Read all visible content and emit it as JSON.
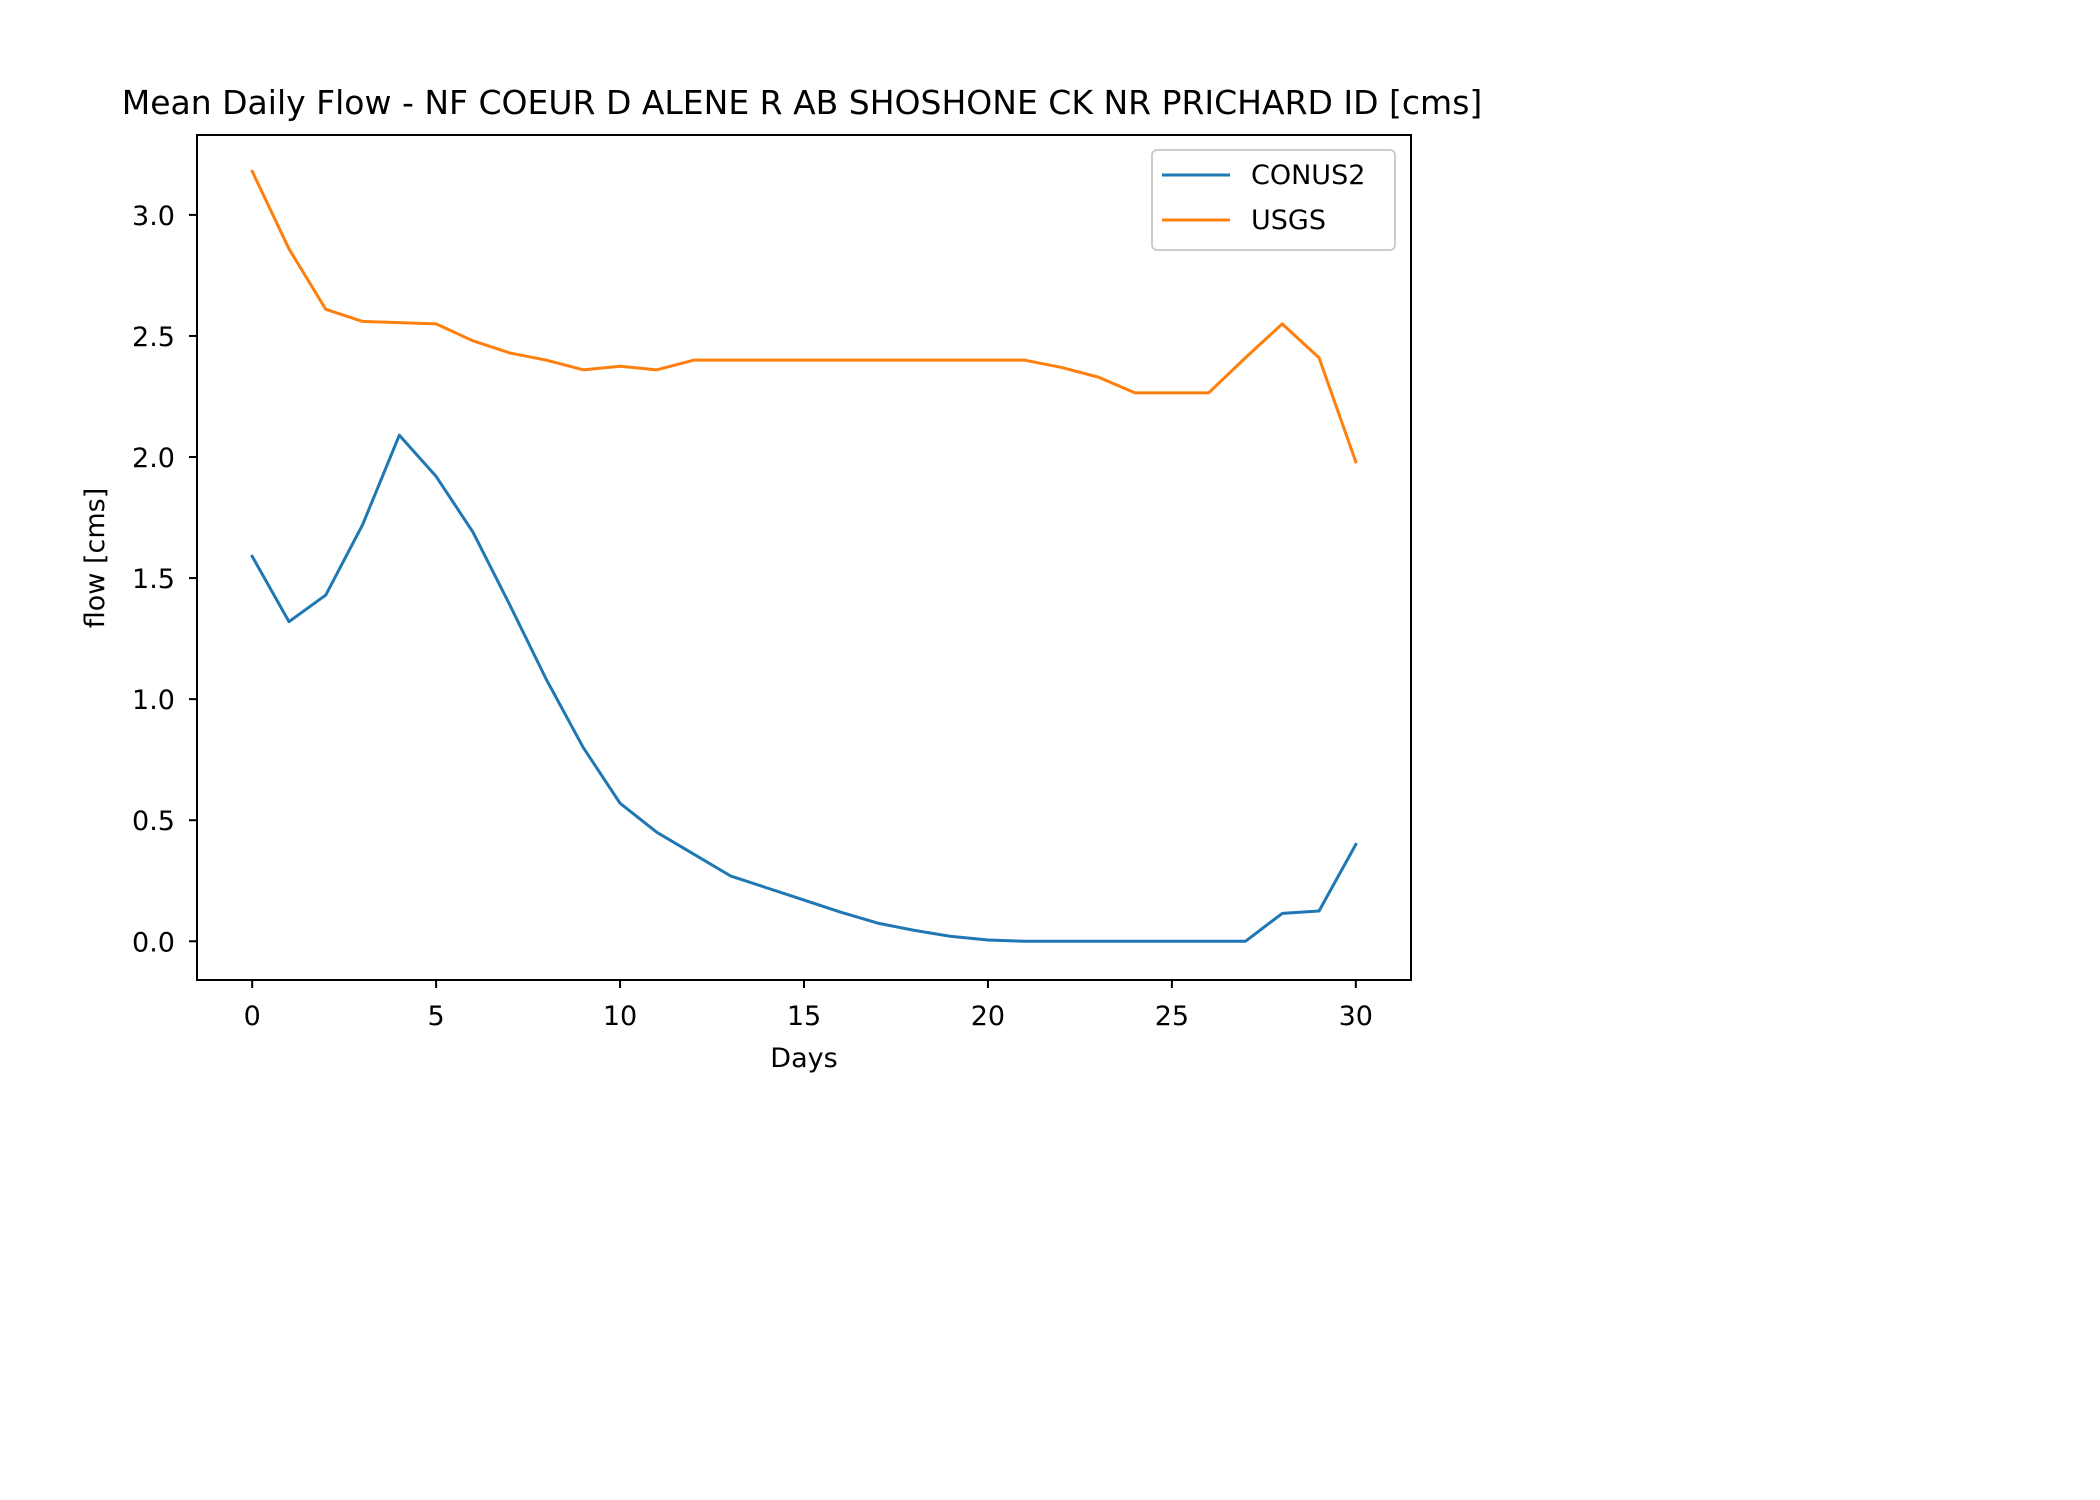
{
  "chart_data": {
    "type": "line",
    "title": "Mean Daily Flow - NF COEUR D ALENE R AB SHOSHONE CK NR PRICHARD ID [cms]",
    "xlabel": "Days",
    "ylabel": "flow [cms]",
    "xlim": [
      -1.5,
      31.5
    ],
    "ylim": [
      -0.16,
      3.33
    ],
    "xticks": [
      0,
      5,
      10,
      15,
      20,
      25,
      30
    ],
    "xtick_labels": [
      "0",
      "5",
      "10",
      "15",
      "20",
      "25",
      "30"
    ],
    "yticks": [
      0.0,
      0.5,
      1.0,
      1.5,
      2.0,
      2.5,
      3.0
    ],
    "ytick_labels": [
      "0.0",
      "0.5",
      "1.0",
      "1.5",
      "2.0",
      "2.5",
      "3.0"
    ],
    "grid": false,
    "legend_position": "top-right",
    "x": [
      0,
      1,
      2,
      3,
      4,
      5,
      6,
      7,
      8,
      9,
      10,
      11,
      12,
      13,
      14,
      15,
      16,
      17,
      18,
      19,
      20,
      21,
      22,
      23,
      24,
      25,
      26,
      27,
      28,
      29,
      30
    ],
    "series": [
      {
        "name": "CONUS2",
        "color": "#1f77b4",
        "values": [
          1.59,
          1.32,
          1.43,
          1.72,
          2.09,
          1.92,
          1.69,
          1.39,
          1.08,
          0.8,
          0.57,
          0.45,
          0.36,
          0.27,
          0.22,
          0.17,
          0.12,
          0.075,
          0.045,
          0.02,
          0.005,
          0.0,
          0.0,
          0.0,
          0.0,
          0.0,
          0.0,
          0.0,
          0.115,
          0.125,
          0.4
        ]
      },
      {
        "name": "USGS",
        "color": "#ff7f0e",
        "values": [
          3.18,
          2.86,
          2.61,
          2.56,
          2.555,
          2.55,
          2.48,
          2.43,
          2.4,
          2.36,
          2.375,
          2.36,
          2.4,
          2.4,
          2.4,
          2.4,
          2.4,
          2.4,
          2.4,
          2.4,
          2.4,
          2.4,
          2.37,
          2.33,
          2.265,
          2.265,
          2.265,
          2.41,
          2.55,
          2.41,
          1.98
        ]
      }
    ]
  }
}
